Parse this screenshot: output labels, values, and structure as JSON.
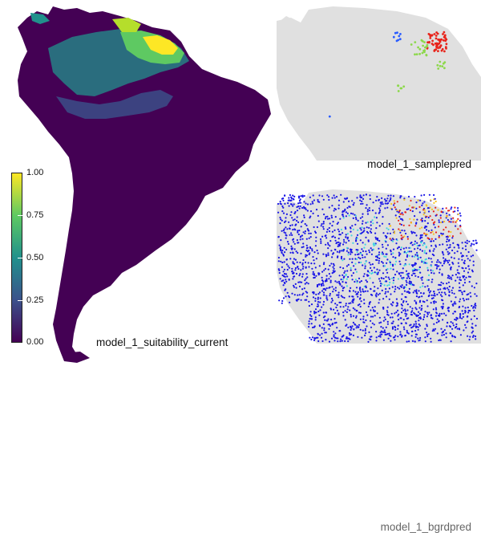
{
  "panels": {
    "main": {
      "title": "model_1_suitability_current",
      "legend": {
        "colormap": "viridis",
        "ticks": [
          "1.00",
          "0.75",
          "0.50",
          "0.25",
          "0.00"
        ],
        "range": [
          0,
          1
        ]
      },
      "colors": {
        "land": "#440154",
        "low": "#46327e",
        "mid": "#21918c",
        "high": "#5ec962",
        "top": "#fde725"
      }
    },
    "samplepred": {
      "title": "model_1_samplepred",
      "colors": {
        "land": "#e0e0e0",
        "high": "#e8231a",
        "mid": "#8cd84a",
        "low": "#2a5cff"
      }
    },
    "bgrdpred": {
      "title": "model_1_bgrdpred",
      "colors": {
        "land": "#e0e0e0",
        "low": "#1a16e6",
        "mid": "#3fd6e0",
        "high": "#e8231a",
        "warm": "#f6c21e"
      }
    }
  }
}
